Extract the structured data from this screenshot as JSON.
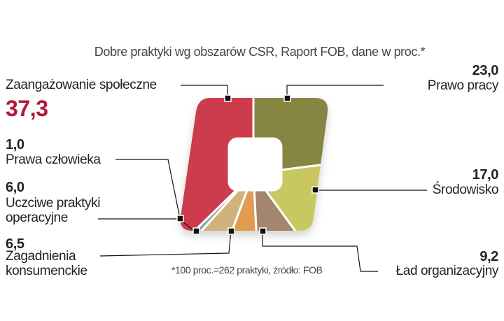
{
  "chart_data": {
    "type": "pie",
    "title": "Dobre praktyki wg obszarów CSR, Raport FOB, dane w proc.*",
    "footnote": "*100 proc.=262 praktyki, źródło: FOB",
    "unit": "proc.",
    "slices": [
      {
        "label": "Prawo pracy",
        "value": 23.0,
        "value_label": "23,0",
        "color": "#868642"
      },
      {
        "label": "Środowisko",
        "value": 17.0,
        "value_label": "17,0",
        "color": "#c9c860"
      },
      {
        "label": "Ład organizacyjny",
        "value": 9.2,
        "value_label": "9,2",
        "color": "#a3866f"
      },
      {
        "label": "Zagadnienia konsumenckie",
        "value": 6.5,
        "value_label": "6,5",
        "color": "#e19c52"
      },
      {
        "label": "Uczciwe praktyki operacyjne",
        "value": 6.0,
        "value_label": "6,0",
        "color": "#d2b27c"
      },
      {
        "label": "Prawa człowieka",
        "value": 1.0,
        "value_label": "1,0",
        "color": "#82aaa2"
      },
      {
        "label": "Zaangażowanie społeczne",
        "value": 37.3,
        "value_label": "37,3",
        "color": "#cc3c4c"
      }
    ],
    "highlight_color": "#b5173d"
  },
  "labels": {
    "zaang": "Zaangażowanie społeczne",
    "prawa_cz_1": "Prawa człowieka",
    "uczciwe_1": "Uczciwe praktyki",
    "uczciwe_2": "operacyjne",
    "zagad_1": "Zagadnienia",
    "zagad_2": "konsumenckie"
  }
}
